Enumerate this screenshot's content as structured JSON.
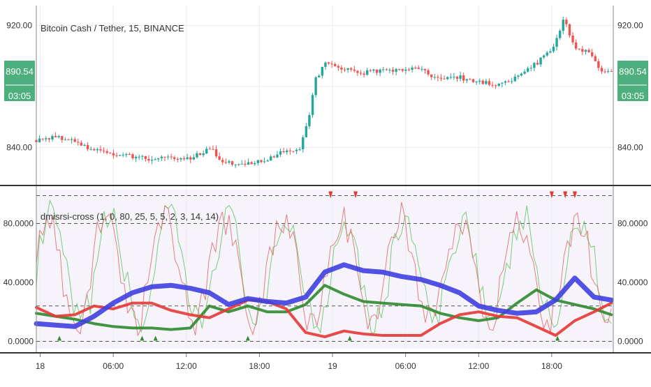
{
  "main_pane": {
    "title": "Bitcoin Cash / Tether, 15, BINANCE",
    "price_ticks": [
      "920.00",
      "840.00"
    ],
    "price_badge": "890.54",
    "time_badge": "03:05"
  },
  "indicator_pane": {
    "title": "dmisrsi-cross (1, 0, 80, 25, 5, 5, 2, 3, 14, 14)",
    "ticks": [
      "80.0000",
      "40.0000",
      "0.0000"
    ]
  },
  "x_axis": {
    "ticks": [
      "18",
      "06:00",
      "12:00",
      "18:00",
      "19",
      "06:00",
      "12:00",
      "18:00"
    ]
  },
  "colors": {
    "up": "#26a69a",
    "down": "#ef5350",
    "badge": "#4caf7d",
    "blue_line": "#3f3fe0",
    "green_line": "#2e8b2e",
    "red_line": "#e53935"
  },
  "chart_data": [
    {
      "type": "candlestick",
      "title": "Bitcoin Cash / Tether, 15, BINANCE",
      "ylim": [
        817,
        933
      ],
      "x_ticks": [
        "18",
        "06:00",
        "12:00",
        "18:00",
        "19",
        "06:00",
        "12:00",
        "18:00"
      ],
      "close_path": [
        {
          "x": 0.0,
          "y": 845
        },
        {
          "x": 1.0,
          "y": 847
        },
        {
          "x": 2.0,
          "y": 844
        },
        {
          "x": 3.0,
          "y": 838
        },
        {
          "x": 4.0,
          "y": 835
        },
        {
          "x": 5.0,
          "y": 834
        },
        {
          "x": 6.0,
          "y": 832
        },
        {
          "x": 7.0,
          "y": 833
        },
        {
          "x": 8.0,
          "y": 832
        },
        {
          "x": 9.0,
          "y": 840
        },
        {
          "x": 9.6,
          "y": 832
        },
        {
          "x": 10.3,
          "y": 828
        },
        {
          "x": 11.0,
          "y": 830
        },
        {
          "x": 12.0,
          "y": 832
        },
        {
          "x": 13.0,
          "y": 838
        },
        {
          "x": 13.7,
          "y": 840
        },
        {
          "x": 14.2,
          "y": 862
        },
        {
          "x": 14.5,
          "y": 884
        },
        {
          "x": 15.0,
          "y": 895
        },
        {
          "x": 16.0,
          "y": 892
        },
        {
          "x": 17.0,
          "y": 889
        },
        {
          "x": 18.0,
          "y": 891
        },
        {
          "x": 19.0,
          "y": 891
        },
        {
          "x": 20.0,
          "y": 892
        },
        {
          "x": 21.0,
          "y": 884
        },
        {
          "x": 22.0,
          "y": 886
        },
        {
          "x": 23.0,
          "y": 883
        },
        {
          "x": 24.0,
          "y": 881
        },
        {
          "x": 25.0,
          "y": 886
        },
        {
          "x": 26.0,
          "y": 895
        },
        {
          "x": 27.0,
          "y": 908
        },
        {
          "x": 27.4,
          "y": 925
        },
        {
          "x": 28.0,
          "y": 905
        },
        {
          "x": 28.7,
          "y": 902
        },
        {
          "x": 29.3,
          "y": 891
        },
        {
          "x": 29.9,
          "y": 890.54
        }
      ]
    },
    {
      "type": "line",
      "title": "dmisrsi-cross (1, 0, 80, 25, 5, 5, 2, 3, 14, 14)",
      "ylim": [
        -5,
        103
      ],
      "reference_lines": [
        99,
        80,
        24,
        0
      ],
      "series": [
        {
          "color": "#3f3fe0",
          "values": [
            [
              0,
              12
            ],
            [
              1,
              11
            ],
            [
              2,
              10
            ],
            [
              3,
              17
            ],
            [
              4,
              26
            ],
            [
              5,
              33
            ],
            [
              6,
              37
            ],
            [
              7,
              38
            ],
            [
              8,
              36
            ],
            [
              9,
              33
            ],
            [
              10,
              25
            ],
            [
              11,
              29
            ],
            [
              12,
              27
            ],
            [
              13,
              26
            ],
            [
              14,
              30
            ],
            [
              15,
              47
            ],
            [
              16,
              52
            ],
            [
              17,
              48
            ],
            [
              18,
              47
            ],
            [
              19,
              44
            ],
            [
              20,
              42
            ],
            [
              21,
              38
            ],
            [
              22,
              33
            ],
            [
              23,
              24
            ],
            [
              24,
              21
            ],
            [
              25,
              19
            ],
            [
              26,
              20
            ],
            [
              27,
              28
            ],
            [
              28,
              43
            ],
            [
              29,
              30
            ],
            [
              29.9,
              28
            ]
          ]
        },
        {
          "color": "#2e8b2e",
          "values": [
            [
              0,
              19
            ],
            [
              1,
              17
            ],
            [
              2,
              15
            ],
            [
              3,
              12
            ],
            [
              4,
              10
            ],
            [
              5,
              9
            ],
            [
              6,
              9
            ],
            [
              7,
              8
            ],
            [
              8,
              9
            ],
            [
              9,
              24
            ],
            [
              10,
              20
            ],
            [
              11,
              24
            ],
            [
              12,
              20
            ],
            [
              13,
              20
            ],
            [
              14,
              25
            ],
            [
              15,
              38
            ],
            [
              16,
              32
            ],
            [
              17,
              27
            ],
            [
              18,
              26
            ],
            [
              19,
              25
            ],
            [
              20,
              24
            ],
            [
              21,
              19
            ],
            [
              22,
              16
            ],
            [
              23,
              14
            ],
            [
              24,
              16
            ],
            [
              25,
              26
            ],
            [
              26,
              35
            ],
            [
              27,
              28
            ],
            [
              28,
              25
            ],
            [
              29,
              22
            ],
            [
              29.9,
              18
            ]
          ]
        },
        {
          "color": "#e53935",
          "values": [
            [
              0,
              23
            ],
            [
              1,
              17
            ],
            [
              2,
              18
            ],
            [
              3,
              24
            ],
            [
              4,
              22
            ],
            [
              5,
              26
            ],
            [
              6,
              26
            ],
            [
              7,
              21
            ],
            [
              8,
              18
            ],
            [
              9,
              16
            ],
            [
              10,
              22
            ],
            [
              11,
              28
            ],
            [
              12,
              27
            ],
            [
              13,
              22
            ],
            [
              14,
              6
            ],
            [
              15,
              3
            ],
            [
              16,
              7
            ],
            [
              17,
              5
            ],
            [
              18,
              4
            ],
            [
              19,
              4
            ],
            [
              20,
              4
            ],
            [
              21,
              12
            ],
            [
              22,
              18
            ],
            [
              23,
              20
            ],
            [
              24,
              17
            ],
            [
              25,
              16
            ],
            [
              26,
              10
            ],
            [
              27,
              4
            ],
            [
              28,
              14
            ],
            [
              29,
              20
            ],
            [
              29.9,
              26
            ]
          ]
        }
      ],
      "arrows_down": [
        15.3,
        16.6,
        26.8,
        27.5,
        28.0
      ],
      "arrows_up": [
        1.2,
        5.5,
        6.2,
        11.0,
        16.3,
        27.1
      ]
    }
  ]
}
